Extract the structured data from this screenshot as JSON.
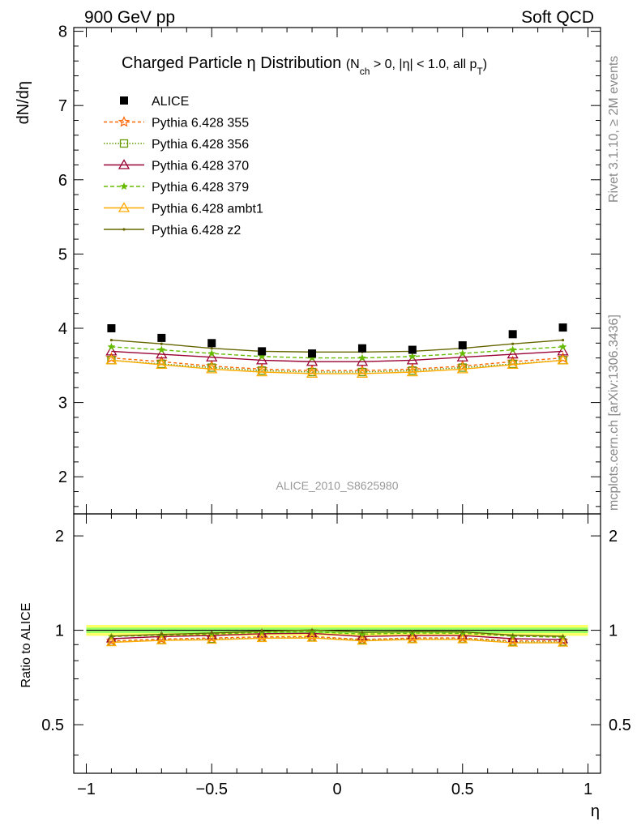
{
  "header": {
    "left": "900 GeV pp",
    "right": "Soft QCD"
  },
  "side_labels": {
    "rivet": "Rivet 3.1.10, ≥ 2M events",
    "mcplots": "mcplots.cern.ch [arXiv:1306.3436]"
  },
  "colors": {
    "alice": "#000000",
    "p355": "#ff6600",
    "p356": "#669900",
    "p370": "#990033",
    "p379": "#66bb00",
    "ambt1": "#ffaa00",
    "z2": "#666600",
    "band_yellow": "#ffff66",
    "band_green": "#99ff66"
  },
  "chart_data": [
    {
      "type": "scatter",
      "title": "Charged Particle η Distribution",
      "subtitle_parts": [
        "(N",
        "ch",
        " > 0, |η| < 1.0, all p",
        "T",
        ")"
      ],
      "ylabel": "dN/dη",
      "watermark": "ALICE_2010_S8625980",
      "xlim": [
        -1.05,
        1.05
      ],
      "ylim": [
        1.5,
        8.05
      ],
      "yticks": [
        2,
        3,
        4,
        5,
        6,
        7,
        8
      ],
      "ytick_labels": [
        "2",
        "3",
        "4",
        "5",
        "6",
        "7",
        "8"
      ],
      "legend_position": "top-left",
      "x": [
        -0.9,
        -0.7,
        -0.5,
        -0.3,
        -0.1,
        0.1,
        0.3,
        0.5,
        0.7,
        0.9
      ],
      "series": [
        {
          "key": "alice",
          "name": "ALICE",
          "marker": "square-filled",
          "line": "none",
          "values": [
            4.0,
            3.87,
            3.8,
            3.69,
            3.66,
            3.73,
            3.71,
            3.77,
            3.92,
            4.01
          ]
        },
        {
          "key": "p355",
          "name": "Pythia 6.428 355",
          "marker": "star-open",
          "line": "dashed",
          "values": [
            3.6,
            3.55,
            3.49,
            3.45,
            3.43,
            3.43,
            3.45,
            3.49,
            3.55,
            3.6
          ]
        },
        {
          "key": "p356",
          "name": "Pythia 6.428 356",
          "marker": "square-open",
          "line": "dotted",
          "values": [
            3.57,
            3.52,
            3.47,
            3.43,
            3.41,
            3.41,
            3.43,
            3.47,
            3.52,
            3.57
          ]
        },
        {
          "key": "p370",
          "name": "Pythia 6.428 370",
          "marker": "triangle-open",
          "line": "solid",
          "values": [
            3.69,
            3.65,
            3.61,
            3.57,
            3.55,
            3.55,
            3.57,
            3.61,
            3.65,
            3.69
          ]
        },
        {
          "key": "p379",
          "name": "Pythia 6.428 379",
          "marker": "star-filled",
          "line": "dashed",
          "values": [
            3.75,
            3.71,
            3.66,
            3.62,
            3.6,
            3.6,
            3.62,
            3.66,
            3.71,
            3.75
          ]
        },
        {
          "key": "ambt1",
          "name": "Pythia 6.428 ambt1",
          "marker": "triangle-open",
          "line": "solid",
          "values": [
            3.57,
            3.51,
            3.45,
            3.41,
            3.39,
            3.39,
            3.41,
            3.45,
            3.51,
            3.57
          ]
        },
        {
          "key": "z2",
          "name": "Pythia 6.428 z2",
          "marker": "dot",
          "line": "solid",
          "values": [
            3.84,
            3.79,
            3.73,
            3.69,
            3.68,
            3.68,
            3.69,
            3.73,
            3.79,
            3.84
          ]
        }
      ]
    },
    {
      "type": "line",
      "ylabel": "Ratio to ALICE",
      "xlabel": "η",
      "xlim": [
        -1.05,
        1.05
      ],
      "ylim": [
        0.35,
        2.35
      ],
      "scale": "log",
      "xticks": [
        -1,
        -0.5,
        0,
        0.5,
        1
      ],
      "xtick_labels": [
        "−1",
        "−0.5",
        "0",
        "0.5",
        "1"
      ],
      "yticks": [
        0.5,
        1,
        2
      ],
      "ytick_labels": [
        "0.5",
        "1",
        "2"
      ],
      "band": {
        "yellow": [
          0.96,
          1.04
        ],
        "green": [
          0.98,
          1.02
        ]
      },
      "x": [
        -0.9,
        -0.7,
        -0.5,
        -0.3,
        -0.1,
        0.1,
        0.3,
        0.5,
        0.7,
        0.9
      ],
      "series": [
        {
          "key": "p355",
          "values": [
            0.925,
            0.937,
            0.945,
            0.952,
            0.955,
            0.935,
            0.945,
            0.945,
            0.925,
            0.925
          ]
        },
        {
          "key": "p356",
          "values": [
            0.917,
            0.93,
            0.937,
            0.945,
            0.948,
            0.93,
            0.938,
            0.938,
            0.918,
            0.917
          ]
        },
        {
          "key": "p370",
          "values": [
            0.94,
            0.955,
            0.962,
            0.975,
            0.978,
            0.955,
            0.962,
            0.962,
            0.94,
            0.935
          ]
        },
        {
          "key": "p379",
          "values": [
            0.955,
            0.965,
            0.972,
            0.985,
            0.99,
            0.972,
            0.98,
            0.978,
            0.958,
            0.95
          ]
        },
        {
          "key": "ambt1",
          "values": [
            0.915,
            0.928,
            0.932,
            0.943,
            0.945,
            0.925,
            0.935,
            0.935,
            0.912,
            0.912
          ]
        },
        {
          "key": "z2",
          "values": [
            0.958,
            0.97,
            0.98,
            0.993,
            1.002,
            0.985,
            0.99,
            0.988,
            0.965,
            0.957
          ]
        }
      ]
    }
  ]
}
